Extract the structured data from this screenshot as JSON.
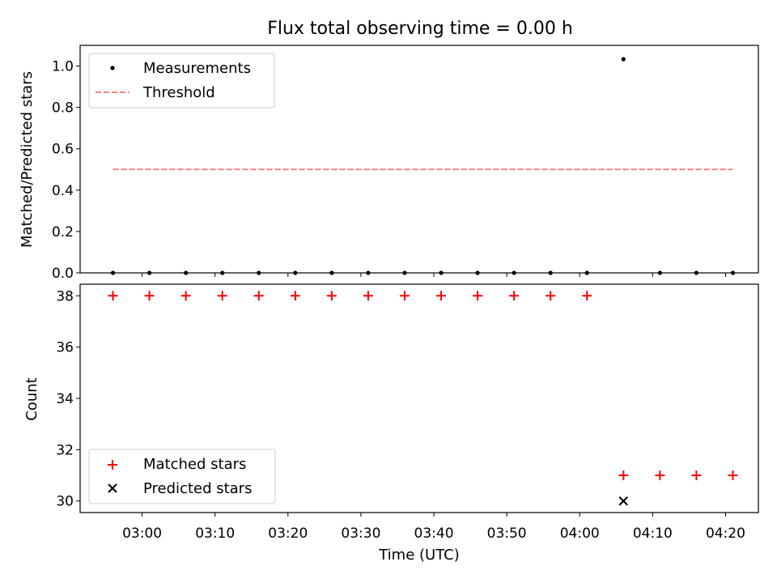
{
  "figure": {
    "title": "Flux total observing time = 0.00 h"
  },
  "chart_data": [
    {
      "type": "scatter",
      "title": "Flux total observing time = 0.00 h",
      "xlabel": "",
      "ylabel": "Matched/Predicted stars",
      "x_domain": [
        "02:51:30",
        "04:24:30"
      ],
      "ylim": [
        0,
        1.1
      ],
      "yticks": [
        0.0,
        0.2,
        0.4,
        0.6,
        0.8,
        1.0
      ],
      "ytick_labels": [
        "0.0",
        "0.2",
        "0.4",
        "0.6",
        "0.8",
        "1.0"
      ],
      "legend": "upper left",
      "series": [
        {
          "name": "Measurements",
          "marker": "dot",
          "color": "#000000",
          "x": [
            "02:56",
            "03:01",
            "03:06",
            "03:11",
            "03:16",
            "03:21",
            "03:26",
            "03:31",
            "03:36",
            "03:41",
            "03:46",
            "03:51",
            "03:56",
            "04:01",
            "04:06",
            "04:11",
            "04:16",
            "04:21"
          ],
          "y": [
            0,
            0,
            0,
            0,
            0,
            0,
            0,
            0,
            0,
            0,
            0,
            0,
            0,
            0,
            1.033,
            0,
            0,
            0
          ]
        },
        {
          "name": "Threshold",
          "marker": "dashed-line",
          "color": "#ff7f7f",
          "x": [
            "02:56",
            "04:21"
          ],
          "y": [
            0.5,
            0.5
          ]
        }
      ]
    },
    {
      "type": "scatter",
      "title": "",
      "xlabel": "Time (UTC)",
      "ylabel": "Count",
      "x_domain": [
        "02:51:30",
        "04:24:30"
      ],
      "xticks": [
        "03:00",
        "03:10",
        "03:20",
        "03:30",
        "03:40",
        "03:50",
        "04:00",
        "04:10",
        "04:20"
      ],
      "ylim": [
        29.55,
        38.45
      ],
      "yticks": [
        30,
        32,
        34,
        36,
        38
      ],
      "ytick_labels": [
        "30",
        "32",
        "34",
        "36",
        "38"
      ],
      "legend": "lower left",
      "series": [
        {
          "name": "Matched stars",
          "marker": "plus",
          "color": "#ff0000",
          "x": [
            "02:56",
            "03:01",
            "03:06",
            "03:11",
            "03:16",
            "03:21",
            "03:26",
            "03:31",
            "03:36",
            "03:41",
            "03:46",
            "03:51",
            "03:56",
            "04:01",
            "04:06",
            "04:11",
            "04:16",
            "04:21"
          ],
          "y": [
            38,
            38,
            38,
            38,
            38,
            38,
            38,
            38,
            38,
            38,
            38,
            38,
            38,
            38,
            31,
            31,
            31,
            31
          ]
        },
        {
          "name": "Predicted stars",
          "marker": "x",
          "color": "#000000",
          "x": [
            "04:06"
          ],
          "y": [
            30
          ]
        }
      ]
    }
  ]
}
